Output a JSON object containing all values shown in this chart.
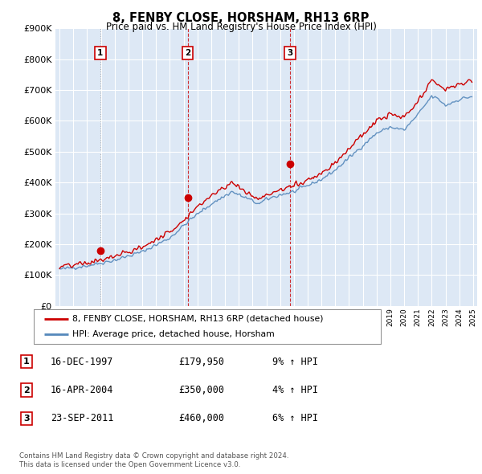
{
  "title": "8, FENBY CLOSE, HORSHAM, RH13 6RP",
  "subtitle": "Price paid vs. HM Land Registry's House Price Index (HPI)",
  "legend_line1": "8, FENBY CLOSE, HORSHAM, RH13 6RP (detached house)",
  "legend_line2": "HPI: Average price, detached house, Horsham",
  "footer1": "Contains HM Land Registry data © Crown copyright and database right 2024.",
  "footer2": "This data is licensed under the Open Government Licence v3.0.",
  "table": [
    {
      "num": "1",
      "date": "16-DEC-1997",
      "price": "£179,950",
      "hpi": "9% ↑ HPI"
    },
    {
      "num": "2",
      "date": "16-APR-2004",
      "price": "£350,000",
      "hpi": "4% ↑ HPI"
    },
    {
      "num": "3",
      "date": "23-SEP-2011",
      "price": "£460,000",
      "hpi": "6% ↑ HPI"
    }
  ],
  "sale_markers": [
    {
      "x_year": 1997.96,
      "y_val": 179950,
      "label": "1"
    },
    {
      "x_year": 2004.29,
      "y_val": 350000,
      "label": "2"
    },
    {
      "x_year": 2011.73,
      "y_val": 460000,
      "label": "3"
    }
  ],
  "vline1_year": 1997.96,
  "vline2_year": 2004.29,
  "vline3_year": 2011.73,
  "ylim": [
    0,
    900000
  ],
  "xlim_start": 1994.7,
  "xlim_end": 2025.3,
  "red_color": "#cc0000",
  "blue_color": "#5588bb",
  "chart_bg": "#dde8f5",
  "background_color": "#ffffff",
  "grid_color": "#ffffff"
}
